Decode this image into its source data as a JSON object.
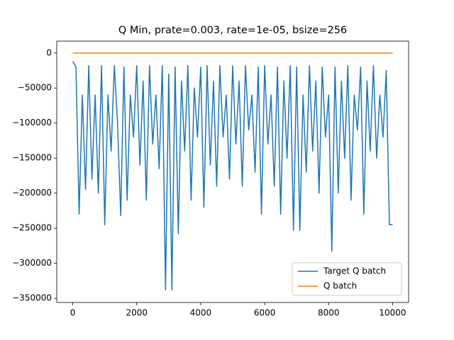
{
  "chart_data": {
    "type": "line",
    "title": "Q Min, prate=0.003, rate=1e-05, bsize=256",
    "xlim": [
      -500,
      10500
    ],
    "ylim": [
      -355950,
      16950
    ],
    "xticks": [
      0,
      2000,
      4000,
      6000,
      8000,
      10000
    ],
    "yticks": [
      0,
      {
        "value": -50000,
        "label": "−50000"
      },
      {
        "value": -100000,
        "label": "−100000"
      },
      {
        "value": -150000,
        "label": "−150000"
      },
      {
        "value": -200000,
        "label": "−200000"
      },
      {
        "value": -250000,
        "label": "−250000"
      },
      {
        "value": -300000,
        "label": "−300000"
      },
      {
        "value": -350000,
        "label": "−350000"
      }
    ],
    "legend": "lower right",
    "series": [
      {
        "name": "Target Q batch",
        "color": "#1f77b4",
        "x": [
          0,
          100,
          200,
          300,
          400,
          500,
          600,
          700,
          800,
          900,
          1000,
          1100,
          1200,
          1300,
          1400,
          1500,
          1600,
          1700,
          1800,
          1900,
          2000,
          2100,
          2200,
          2300,
          2400,
          2500,
          2600,
          2700,
          2800,
          2900,
          3000,
          3100,
          3200,
          3300,
          3400,
          3500,
          3600,
          3700,
          3800,
          3900,
          4000,
          4100,
          4200,
          4300,
          4400,
          4500,
          4600,
          4700,
          4800,
          4900,
          5000,
          5100,
          5200,
          5300,
          5400,
          5500,
          5600,
          5700,
          5800,
          5900,
          6000,
          6100,
          6200,
          6300,
          6400,
          6500,
          6600,
          6700,
          6800,
          6900,
          7000,
          7100,
          7200,
          7300,
          7400,
          7500,
          7600,
          7700,
          7800,
          7900,
          8000,
          8100,
          8200,
          8300,
          8400,
          8500,
          8600,
          8700,
          8800,
          8900,
          9000,
          9100,
          9200,
          9300,
          9400,
          9500,
          9600,
          9700,
          9800,
          9900,
          10000
        ],
        "values": [
          -12000,
          -20000,
          -230000,
          -60000,
          -195000,
          -18000,
          -180000,
          -60000,
          -200000,
          -18000,
          -245000,
          -60000,
          -140000,
          -18000,
          -100000,
          -232000,
          -20000,
          -210000,
          -60000,
          -120000,
          -18000,
          -160000,
          -40000,
          -210000,
          -18000,
          -130000,
          -60000,
          -165000,
          -18000,
          -338000,
          -30000,
          -338000,
          -20000,
          -258000,
          -40000,
          -140000,
          -18000,
          -210000,
          -50000,
          -120000,
          -20000,
          -220000,
          -18000,
          -160000,
          -40000,
          -190000,
          -18000,
          -120000,
          -60000,
          -180000,
          -18000,
          -130000,
          -40000,
          -190000,
          -18000,
          -110000,
          -60000,
          -170000,
          -20000,
          -230000,
          -18000,
          -130000,
          -60000,
          -190000,
          -20000,
          -230000,
          -40000,
          -150000,
          -18000,
          -253000,
          -20000,
          -253000,
          -60000,
          -170000,
          -18000,
          -140000,
          -40000,
          -200000,
          -20000,
          -120000,
          -60000,
          -283000,
          -20000,
          -200000,
          -40000,
          -150000,
          -18000,
          -210000,
          -60000,
          -110000,
          -20000,
          -230000,
          -40000,
          -140000,
          -18000,
          -150000,
          -60000,
          -120000,
          -25000,
          -245000,
          -245000
        ]
      },
      {
        "name": "Q batch",
        "color": "#ff7f0e",
        "x": [
          0,
          10000
        ],
        "values": [
          0,
          0
        ]
      }
    ]
  }
}
